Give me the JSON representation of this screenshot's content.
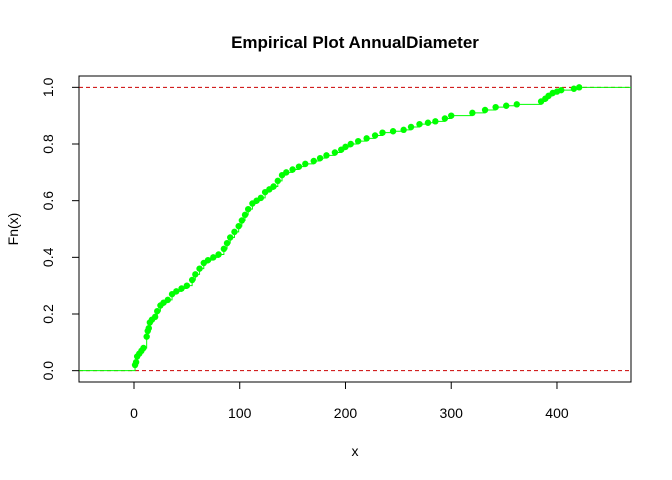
{
  "chart_data": {
    "type": "line",
    "title": "Empirical Plot AnnualDiameter",
    "xlabel": "x",
    "ylabel": "Fn(x)",
    "xlim": [
      -52,
      470
    ],
    "ylim": [
      -0.04,
      1.04
    ],
    "x_ticks": [
      "0",
      "100",
      "200",
      "300",
      "400"
    ],
    "y_ticks": [
      "0.0",
      "0.2",
      "0.4",
      "0.6",
      "0.8",
      "1.0"
    ],
    "grid": false,
    "legend": "none",
    "series_color": "#00ff00",
    "reference_line_color": "#cc0000",
    "reference_lines_y": [
      0,
      1
    ],
    "points": [
      [
        1,
        0.02
      ],
      [
        2,
        0.03
      ],
      [
        3,
        0.05
      ],
      [
        5,
        0.06
      ],
      [
        7,
        0.07
      ],
      [
        9,
        0.08
      ],
      [
        12,
        0.12
      ],
      [
        13,
        0.14
      ],
      [
        14,
        0.15
      ],
      [
        15,
        0.17
      ],
      [
        17,
        0.18
      ],
      [
        20,
        0.19
      ],
      [
        22,
        0.21
      ],
      [
        25,
        0.23
      ],
      [
        28,
        0.24
      ],
      [
        32,
        0.25
      ],
      [
        36,
        0.27
      ],
      [
        40,
        0.28
      ],
      [
        45,
        0.29
      ],
      [
        50,
        0.3
      ],
      [
        55,
        0.32
      ],
      [
        58,
        0.34
      ],
      [
        62,
        0.36
      ],
      [
        66,
        0.38
      ],
      [
        70,
        0.39
      ],
      [
        75,
        0.4
      ],
      [
        80,
        0.41
      ],
      [
        85,
        0.43
      ],
      [
        88,
        0.45
      ],
      [
        91,
        0.47
      ],
      [
        95,
        0.49
      ],
      [
        99,
        0.51
      ],
      [
        102,
        0.53
      ],
      [
        105,
        0.55
      ],
      [
        108,
        0.57
      ],
      [
        112,
        0.59
      ],
      [
        116,
        0.6
      ],
      [
        120,
        0.61
      ],
      [
        124,
        0.63
      ],
      [
        128,
        0.64
      ],
      [
        132,
        0.65
      ],
      [
        136,
        0.67
      ],
      [
        140,
        0.69
      ],
      [
        144,
        0.7
      ],
      [
        150,
        0.71
      ],
      [
        156,
        0.72
      ],
      [
        162,
        0.73
      ],
      [
        170,
        0.74
      ],
      [
        176,
        0.75
      ],
      [
        182,
        0.76
      ],
      [
        190,
        0.77
      ],
      [
        196,
        0.78
      ],
      [
        200,
        0.79
      ],
      [
        205,
        0.8
      ],
      [
        212,
        0.81
      ],
      [
        220,
        0.82
      ],
      [
        228,
        0.83
      ],
      [
        235,
        0.84
      ],
      [
        245,
        0.845
      ],
      [
        255,
        0.85
      ],
      [
        262,
        0.86
      ],
      [
        270,
        0.87
      ],
      [
        278,
        0.875
      ],
      [
        285,
        0.88
      ],
      [
        294,
        0.89
      ],
      [
        300,
        0.9
      ],
      [
        320,
        0.91
      ],
      [
        332,
        0.92
      ],
      [
        342,
        0.93
      ],
      [
        352,
        0.935
      ],
      [
        362,
        0.94
      ],
      [
        385,
        0.95
      ],
      [
        389,
        0.96
      ],
      [
        392,
        0.97
      ],
      [
        396,
        0.98
      ],
      [
        400,
        0.985
      ],
      [
        404,
        0.99
      ],
      [
        416,
        0.995
      ],
      [
        421,
        1.0
      ]
    ]
  }
}
